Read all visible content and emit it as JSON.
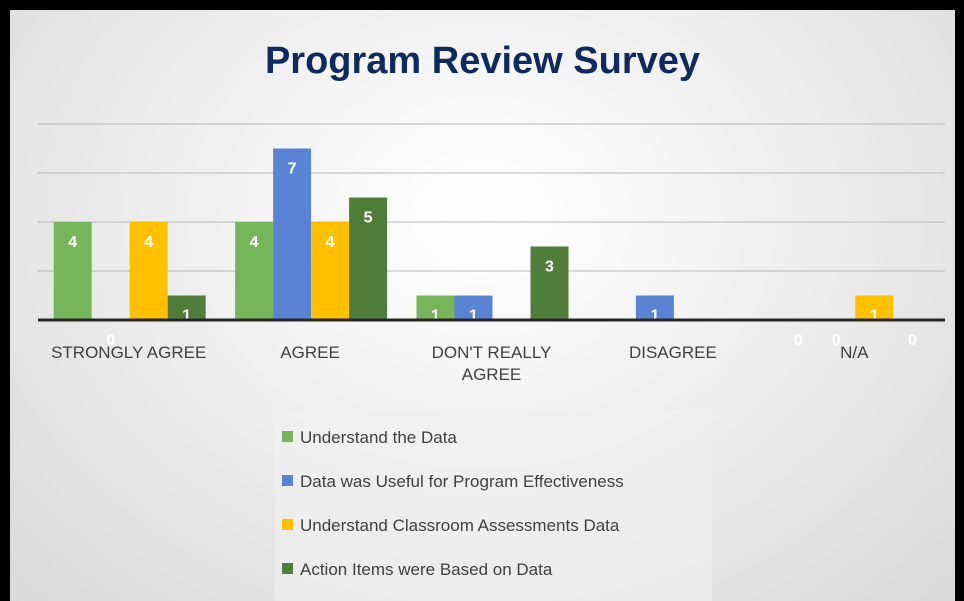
{
  "chart_data": {
    "type": "bar",
    "title": "Program Review Survey",
    "categories": [
      "STRONGLY AGREE",
      "AGREE",
      "DON'T REALLY AGREE",
      "DISAGREE",
      "N/A"
    ],
    "series": [
      {
        "name": "Understand the Data",
        "color": "#77b55a",
        "values": [
          4,
          4,
          1,
          null,
          0
        ]
      },
      {
        "name": "Data was Useful for Program Effectiveness",
        "color": "#5a84d3",
        "values": [
          0,
          7,
          1,
          1,
          0
        ]
      },
      {
        "name": "Understand Classroom Assessments Data",
        "color": "#ffc000",
        "values": [
          4,
          4,
          null,
          null,
          1
        ]
      },
      {
        "name": "Action Items were Based on Data",
        "color": "#507e3a",
        "values": [
          1,
          5,
          3,
          null,
          0
        ]
      }
    ],
    "ylim": [
      0,
      8
    ],
    "yticks": [
      0,
      2,
      4,
      6,
      8
    ],
    "grid": true
  }
}
